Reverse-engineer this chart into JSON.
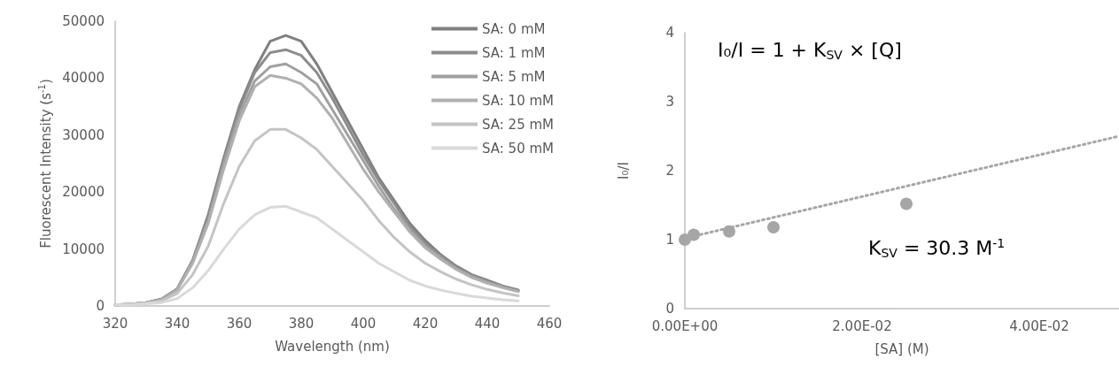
{
  "chart_data": [
    {
      "type": "line",
      "xlabel": "Wavelength (nm)",
      "ylabel": "Fluorescent Intensity (s$^{-1}$)",
      "x": [
        320,
        325,
        330,
        335,
        340,
        345,
        350,
        355,
        360,
        365,
        370,
        375,
        380,
        385,
        390,
        395,
        400,
        405,
        410,
        415,
        420,
        425,
        430,
        435,
        440,
        445,
        450
      ],
      "series": [
        {
          "name": "SA: 0 mM",
          "color": "#7f7f7f",
          "values": [
            200,
            300,
            600,
            1200,
            3000,
            8000,
            16000,
            26000,
            35000,
            41500,
            46500,
            47500,
            46500,
            42500,
            37500,
            32500,
            27500,
            22500,
            18500,
            14500,
            11500,
            9000,
            7000,
            5500,
            4500,
            3500,
            2800
          ]
        },
        {
          "name": "SA: 1 mM",
          "color": "#8c8c8c",
          "values": [
            200,
            300,
            600,
            1200,
            3000,
            8000,
            15500,
            25500,
            34500,
            41000,
            44500,
            45000,
            44000,
            41000,
            36500,
            31500,
            26500,
            22000,
            18000,
            14000,
            11000,
            8800,
            6800,
            5400,
            4300,
            3400,
            2700
          ]
        },
        {
          "name": "SA: 5 mM",
          "color": "#a0a0a0",
          "values": [
            200,
            300,
            600,
            1100,
            2900,
            7800,
            15000,
            25000,
            33500,
            39500,
            42000,
            42500,
            41000,
            39000,
            34500,
            30000,
            25500,
            21000,
            17000,
            13500,
            10500,
            8500,
            6600,
            5200,
            4200,
            3300,
            2600
          ]
        },
        {
          "name": "SA: 10 mM",
          "color": "#b0b0b0",
          "values": [
            200,
            300,
            500,
            1100,
            2800,
            7500,
            14500,
            24000,
            32500,
            38500,
            40500,
            40000,
            39000,
            36500,
            33000,
            28500,
            24000,
            20000,
            16500,
            13000,
            10200,
            8200,
            6400,
            5000,
            4000,
            3200,
            2500
          ]
        },
        {
          "name": "SA: 25 mM",
          "color": "#c4c4c4",
          "values": [
            200,
            300,
            500,
            900,
            2200,
            5500,
            10500,
            18000,
            24500,
            29000,
            31000,
            31000,
            29500,
            27500,
            24500,
            21500,
            18500,
            15000,
            12000,
            9500,
            7500,
            6000,
            4700,
            3700,
            2900,
            2300,
            1800
          ]
        },
        {
          "name": "SA: 50 mM",
          "color": "#d9d9d9",
          "values": [
            200,
            200,
            400,
            600,
            1300,
            3200,
            6200,
            10000,
            13500,
            16000,
            17300,
            17500,
            16500,
            15500,
            13500,
            11500,
            9500,
            7500,
            6000,
            4500,
            3500,
            2800,
            2200,
            1700,
            1400,
            1100,
            900
          ]
        }
      ],
      "xlim": [
        320,
        460
      ],
      "xticks": [
        320,
        340,
        360,
        380,
        400,
        420,
        440,
        460
      ],
      "ylim": [
        0,
        50000
      ],
      "yticks": [
        0,
        10000,
        20000,
        30000,
        40000,
        50000
      ],
      "grid": false,
      "legend": "top right",
      "marker": "none",
      "line_style": "solid"
    },
    {
      "type": "scatter",
      "xlabel": "[SA] (M)",
      "ylabel": "I₀/I",
      "annotations": [
        "I₀/I = 1 + K$_{SV}$ × [Q]",
        "K$_{SV}$ = 30.3 M$^{-1}$"
      ],
      "series": [
        {
          "color": "#a6a6a6",
          "marker": "circle",
          "x": [
            0,
            0.001,
            0.005,
            0.01,
            0.025
          ],
          "values": [
            1.0,
            1.07,
            1.12,
            1.18,
            1.52
          ]
        },
        {
          "type": "line",
          "color": "#a6a6a6",
          "marker": "none",
          "line_style": "dotted",
          "x": [
            0,
            0.049
          ],
          "values": [
            1.02,
            2.5
          ]
        }
      ],
      "xlim": [
        0,
        0.049
      ],
      "xticks": [
        {
          "value": 0,
          "label": "0.00E+00"
        },
        {
          "value": 0.02,
          "label": "2.00E-02"
        },
        {
          "value": 0.04,
          "label": "4.00E-02"
        }
      ],
      "ylim": [
        0,
        4
      ],
      "yticks": [
        0,
        1,
        2,
        3,
        4
      ],
      "grid": false,
      "legend": false
    }
  ]
}
